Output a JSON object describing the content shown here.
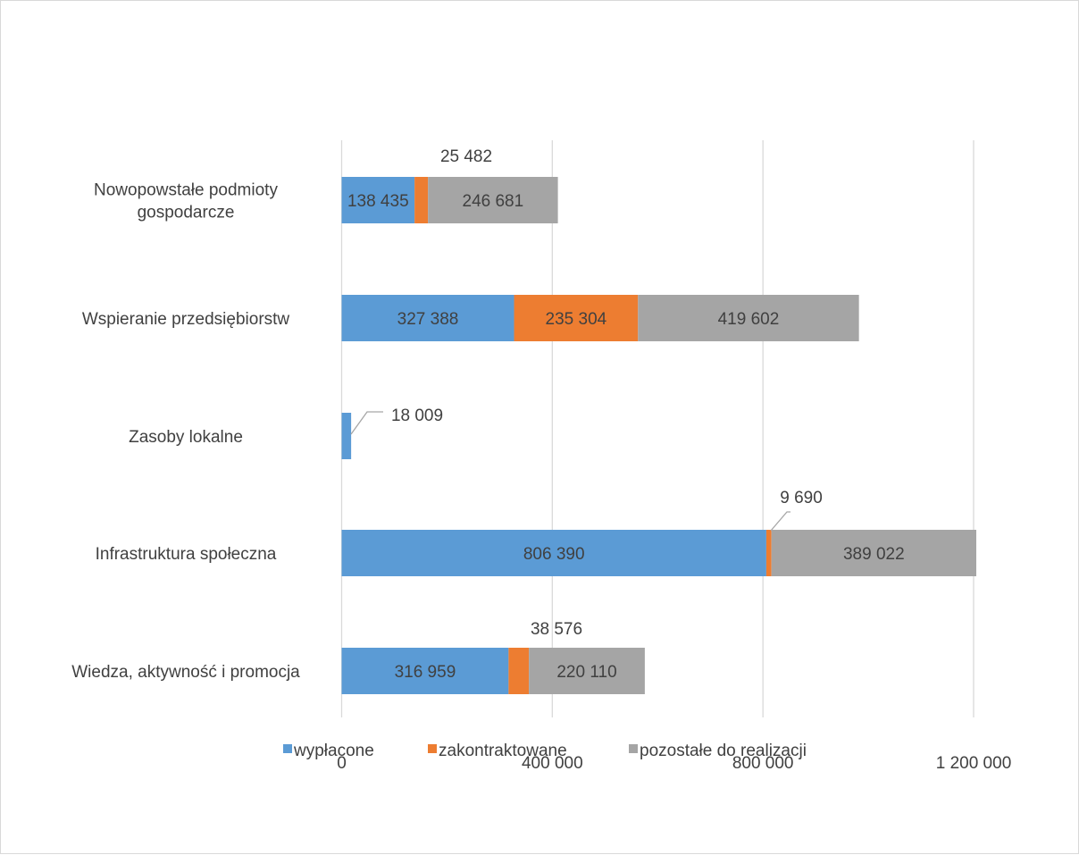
{
  "chart_data": {
    "type": "bar",
    "orientation": "horizontal",
    "stacked": true,
    "categories": [
      "Nowopowstałe podmioty gospodarcze",
      "Wspieranie przedsiębiorstw",
      "Zasoby lokalne",
      "Infrastruktura społeczna",
      "Wiedza, aktywność i promocja"
    ],
    "category_label_lines": [
      [
        "Nowopowstałe podmioty",
        "gospodarcze"
      ],
      [
        "Wspieranie przedsiębiorstw"
      ],
      [
        "Zasoby lokalne"
      ],
      [
        "Infrastruktura społeczna"
      ],
      [
        "Wiedza, aktywność i promocja"
      ]
    ],
    "series": [
      {
        "name": "wypłacone",
        "color": "#5b9bd5",
        "values": [
          138435,
          327388,
          18009,
          806390,
          316959
        ],
        "labels": [
          "138 435",
          "327 388",
          "18 009",
          "806 390",
          "316 959"
        ]
      },
      {
        "name": "zakontraktowane",
        "color": "#ed7d31",
        "values": [
          25482,
          235304,
          0,
          9690,
          38576
        ],
        "labels": [
          "25 482",
          "235 304",
          "",
          "9 690",
          "38 576"
        ]
      },
      {
        "name": "pozostałe do realizacji",
        "color": "#a5a5a5",
        "values": [
          246681,
          419602,
          0,
          389022,
          220110
        ],
        "labels": [
          "246 681",
          "419 602",
          "",
          "389 022",
          "220 110"
        ]
      }
    ],
    "xlim": [
      0,
      1200000
    ],
    "xticks": [
      0,
      400000,
      800000,
      1200000
    ],
    "xtick_labels": [
      "0",
      "400 000",
      "800 000",
      "1 200 000"
    ],
    "grid": "vertical",
    "legend": "bottom",
    "title": "",
    "xlabel": "",
    "ylabel": ""
  }
}
